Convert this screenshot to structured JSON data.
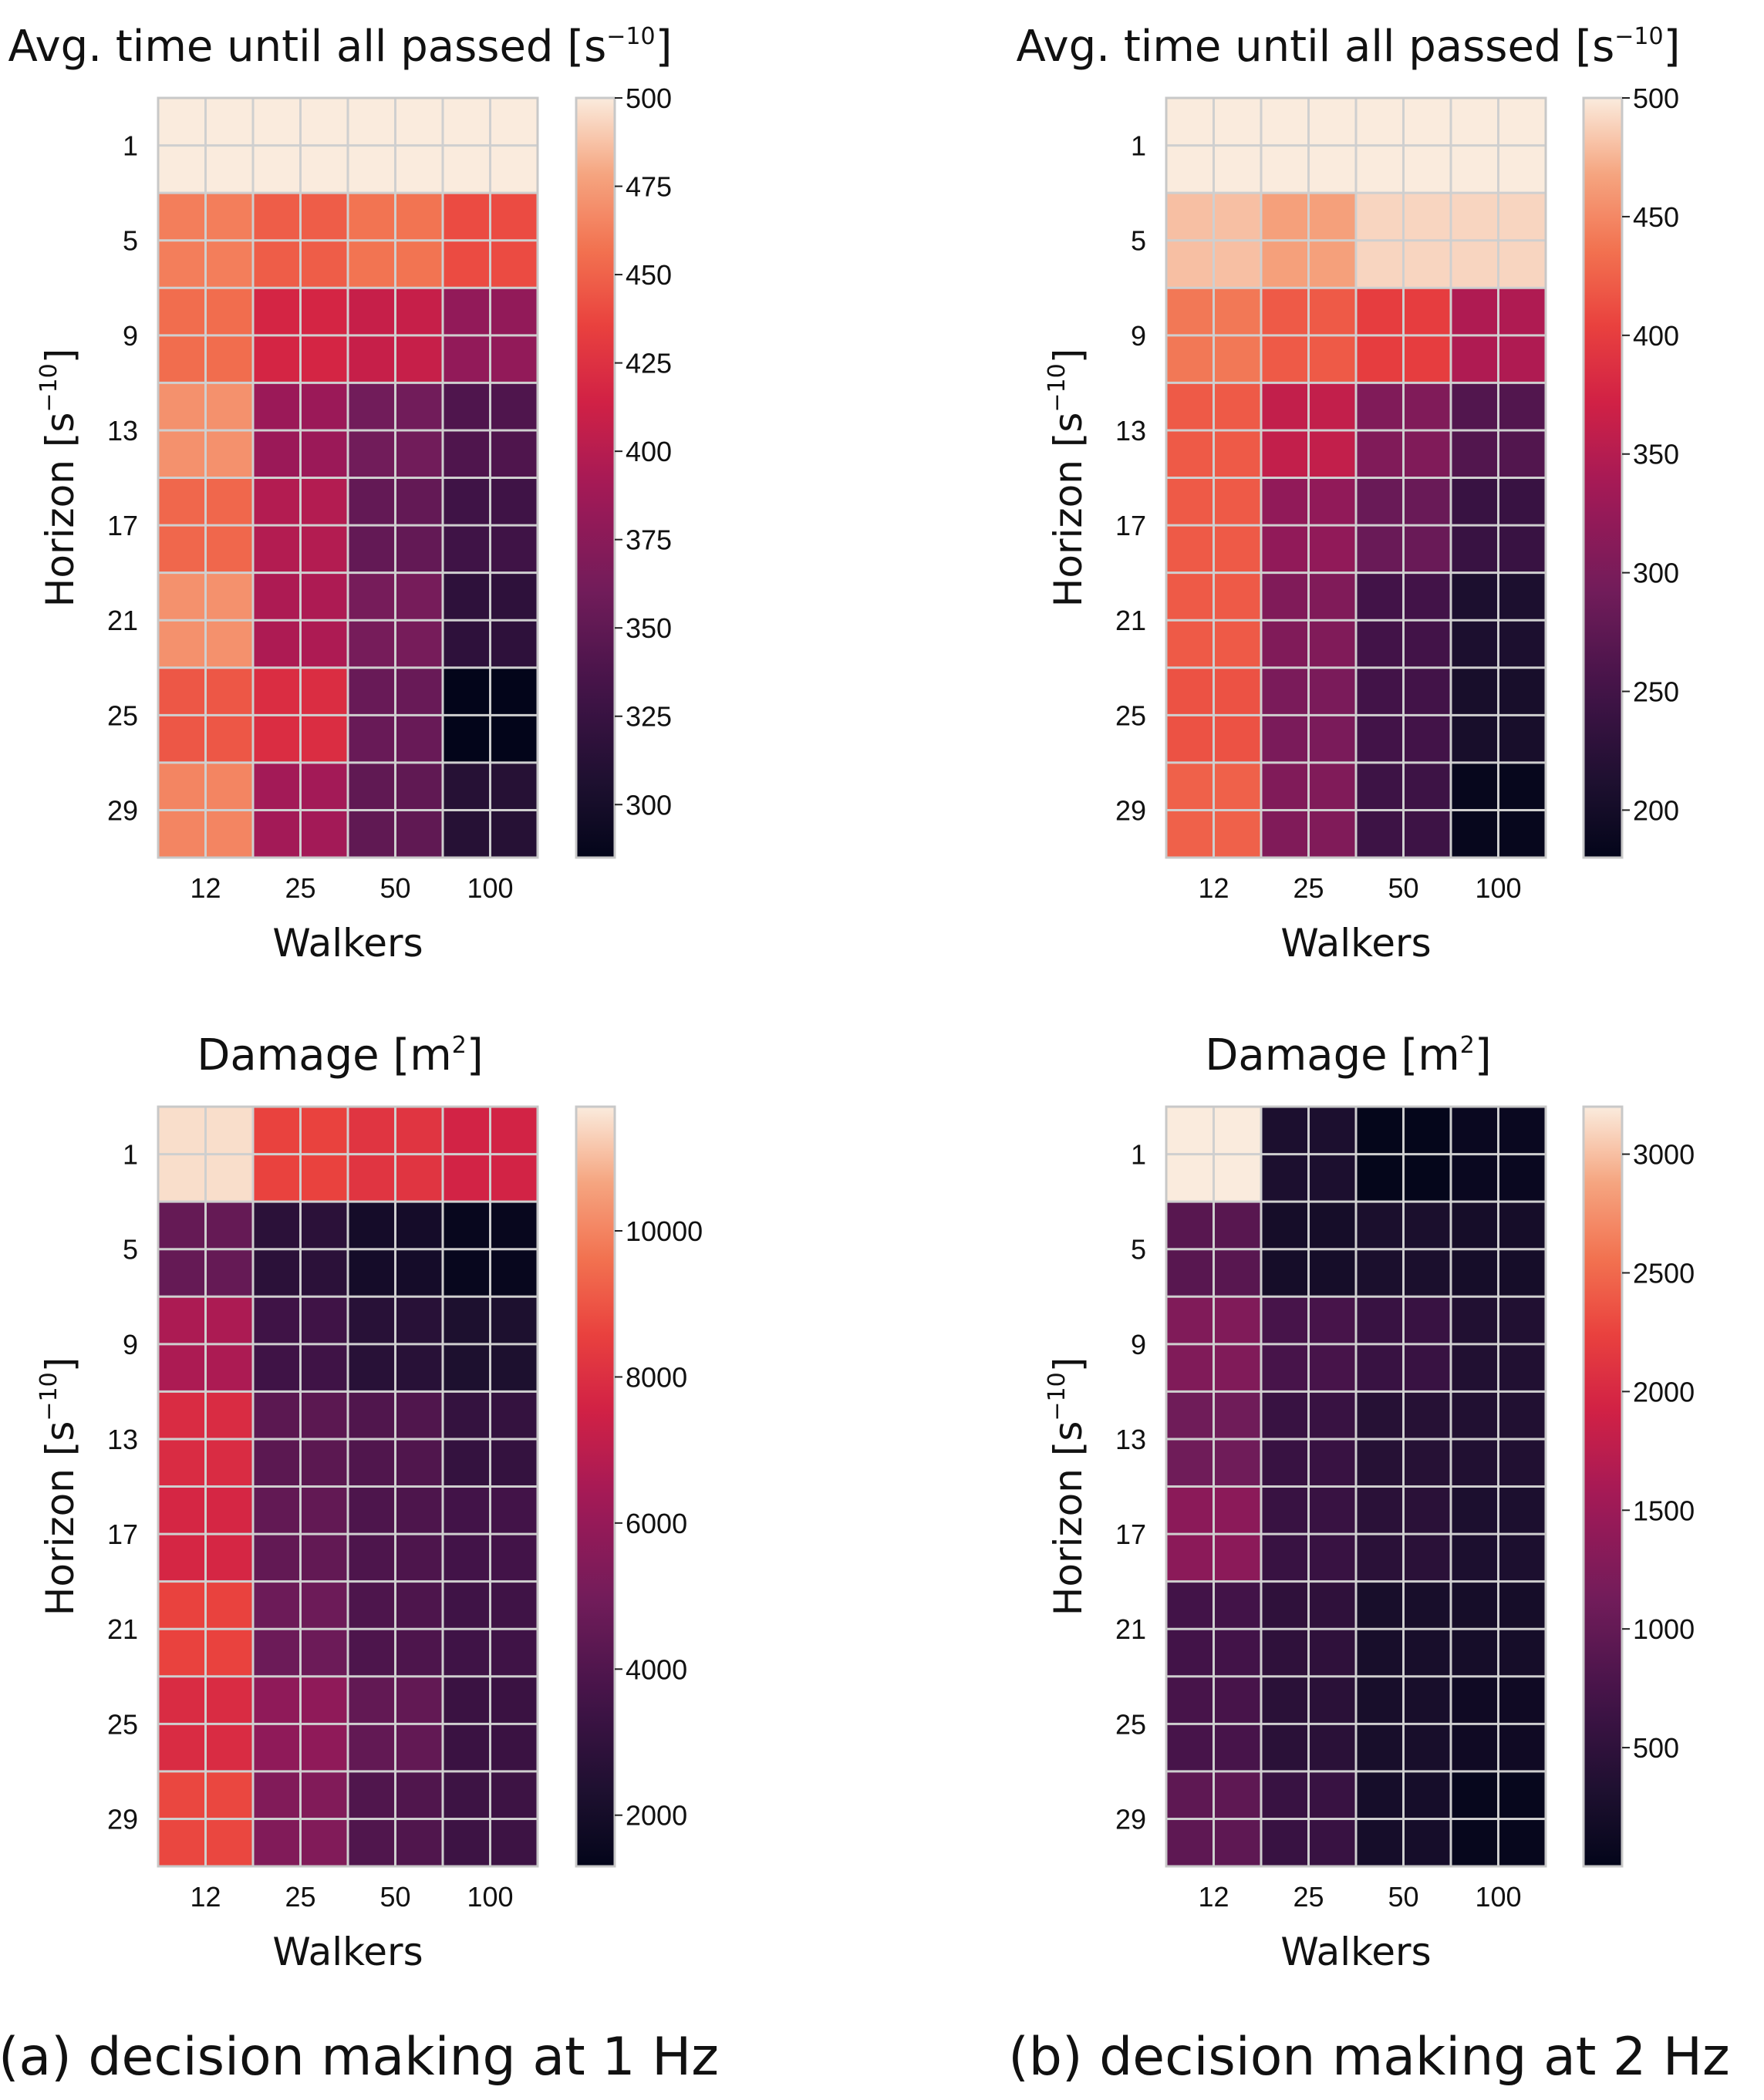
{
  "colors": {
    "background": "#ffffff",
    "grid": "#cfcfcf",
    "frame": "#c8c8c8",
    "text": "#111111"
  },
  "captions": [
    "(a) decision making at 1 Hz",
    "(b) decision making at 2 Hz"
  ],
  "chart_data": [
    {
      "type": "heatmap",
      "id": "a-time",
      "title": "Avg. time until all passed [s",
      "title_sup": "−10",
      "title_end": "]",
      "xlabel": "Walkers",
      "ylabel": "Horizon [s",
      "ylabel_sup": "−10",
      "ylabel_end": "]",
      "x_categories": [
        "12",
        "25",
        "50",
        "100"
      ],
      "y_categories": [
        "1",
        "5",
        "9",
        "13",
        "17",
        "21",
        "25",
        "29"
      ],
      "vmin": 285,
      "vmax": 500,
      "colorbar_ticks": [
        "500",
        "475",
        "450",
        "425",
        "400",
        "375",
        "350",
        "325",
        "300"
      ],
      "values": [
        [
          500,
          500,
          500,
          500
        ],
        [
          462,
          448,
          458,
          440
        ],
        [
          455,
          417,
          408,
          380
        ],
        [
          470,
          385,
          360,
          340
        ],
        [
          452,
          398,
          352,
          330
        ],
        [
          470,
          395,
          363,
          318
        ],
        [
          445,
          422,
          355,
          285
        ],
        [
          465,
          390,
          350,
          312
        ]
      ]
    },
    {
      "type": "heatmap",
      "id": "b-time",
      "title": "Avg. time until all passed [s",
      "title_sup": "−10",
      "title_end": "]",
      "xlabel": "Walkers",
      "ylabel": "Horizon [s",
      "ylabel_sup": "−10",
      "ylabel_end": "]",
      "x_categories": [
        "12",
        "25",
        "50",
        "100"
      ],
      "y_categories": [
        "1",
        "5",
        "9",
        "13",
        "17",
        "21",
        "25",
        "29"
      ],
      "vmin": 180,
      "vmax": 500,
      "colorbar_ticks": [
        "500",
        "450",
        "400",
        "350",
        "300",
        "250",
        "200"
      ],
      "values": [
        [
          500,
          500,
          500,
          500
        ],
        [
          480,
          465,
          490,
          490
        ],
        [
          440,
          420,
          400,
          345
        ],
        [
          420,
          360,
          305,
          265
        ],
        [
          420,
          320,
          285,
          240
        ],
        [
          420,
          305,
          250,
          210
        ],
        [
          415,
          300,
          250,
          205
        ],
        [
          425,
          305,
          245,
          185
        ]
      ]
    },
    {
      "type": "heatmap",
      "id": "a-damage",
      "title": "Damage [m",
      "title_sup": "2",
      "title_end": "]",
      "xlabel": "Walkers",
      "ylabel": "Horizon [s",
      "ylabel_sup": "−10",
      "ylabel_end": "]",
      "x_categories": [
        "12",
        "25",
        "50",
        "100"
      ],
      "y_categories": [
        "1",
        "5",
        "9",
        "13",
        "17",
        "21",
        "25",
        "29"
      ],
      "vmin": 1300,
      "vmax": 11700,
      "colorbar_ticks": [
        "10000",
        "8000",
        "6000",
        "4000",
        "2000"
      ],
      "values": [
        [
          11500,
          8600,
          8200,
          7600
        ],
        [
          4600,
          2800,
          2000,
          1500
        ],
        [
          6600,
          3500,
          2700,
          2300
        ],
        [
          7900,
          4300,
          4000,
          3100
        ],
        [
          7700,
          4500,
          3900,
          3600
        ],
        [
          8600,
          4800,
          3900,
          3500
        ],
        [
          7900,
          5800,
          4500,
          3300
        ],
        [
          8700,
          5400,
          4000,
          3400
        ]
      ]
    },
    {
      "type": "heatmap",
      "id": "b-damage",
      "title": "Damage [m",
      "title_sup": "2",
      "title_end": "]",
      "xlabel": "Walkers",
      "ylabel": "Horizon [s",
      "ylabel_sup": "−10",
      "ylabel_end": "]",
      "x_categories": [
        "12",
        "25",
        "50",
        "100"
      ],
      "y_categories": [
        "1",
        "5",
        "9",
        "13",
        "17",
        "21",
        "25",
        "29"
      ],
      "vmin": 0,
      "vmax": 3200,
      "colorbar_ticks": [
        "3000",
        "2500",
        "2000",
        "1500",
        "1000",
        "500"
      ],
      "values": [
        [
          3200,
          300,
          20,
          80
        ],
        [
          900,
          220,
          280,
          220
        ],
        [
          1250,
          750,
          600,
          350
        ],
        [
          1100,
          600,
          400,
          350
        ],
        [
          1350,
          600,
          450,
          300
        ],
        [
          700,
          500,
          250,
          220
        ],
        [
          750,
          450,
          250,
          150
        ],
        [
          950,
          600,
          230,
          50
        ]
      ]
    }
  ]
}
